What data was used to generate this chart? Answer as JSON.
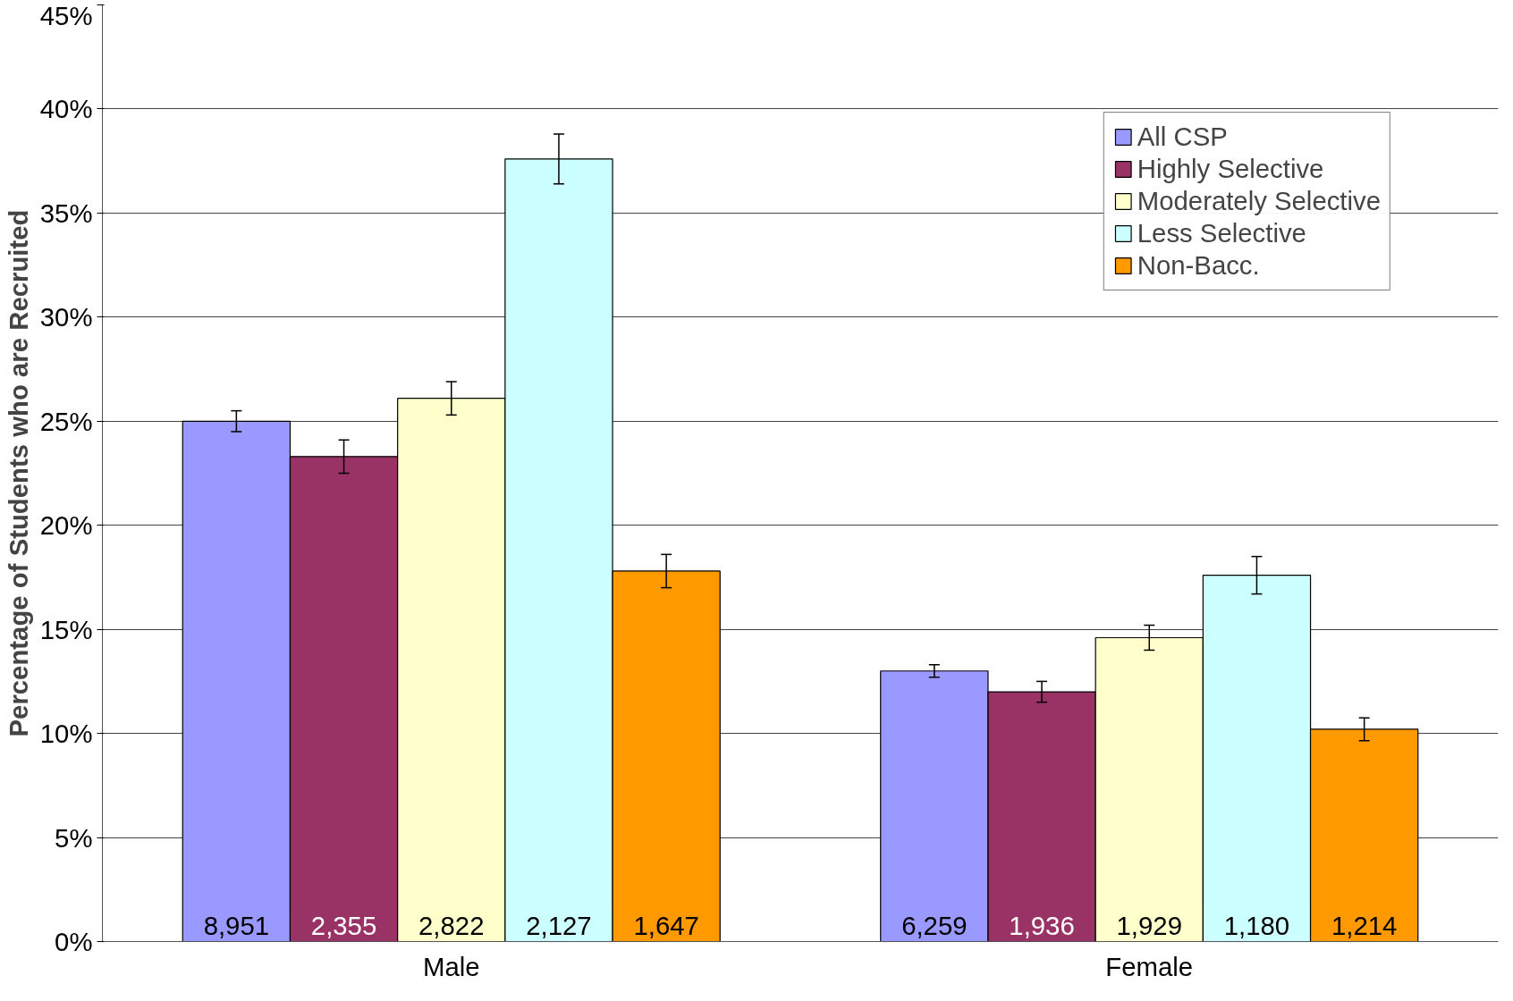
{
  "chart_data": {
    "type": "bar",
    "ylabel": "Percentage of Students who are Recruited",
    "categories": [
      "Male",
      "Female"
    ],
    "series": [
      {
        "name": "All CSP",
        "color": "#9999ff",
        "values": [
          25.0,
          13.0
        ],
        "errors": [
          0.5,
          0.3
        ]
      },
      {
        "name": "Highly Selective",
        "color": "#993366",
        "values": [
          23.3,
          12.0
        ],
        "errors": [
          0.8,
          0.5
        ]
      },
      {
        "name": "Moderately Selective",
        "color": "#ffffcc",
        "values": [
          26.1,
          14.6
        ],
        "errors": [
          0.8,
          0.6
        ]
      },
      {
        "name": "Less Selective",
        "color": "#ccffff",
        "values": [
          37.6,
          17.6
        ],
        "errors": [
          1.2,
          0.9
        ]
      },
      {
        "name": "Non-Bacc.",
        "color": "#ff9900",
        "values": [
          17.8,
          10.2
        ],
        "errors": [
          0.8,
          0.55
        ]
      }
    ],
    "annotations": [
      "8,951",
      "2,355",
      "2,822",
      "2,127",
      "1,647",
      "6,259",
      "1,936",
      "1,929",
      "1,180",
      "1,214"
    ],
    "ylim": [
      0,
      45
    ],
    "yticks": [
      {
        "value": 0,
        "label": "0%"
      },
      {
        "value": 5,
        "label": "5%"
      },
      {
        "value": 10,
        "label": "10%"
      },
      {
        "value": 15,
        "label": "15%"
      },
      {
        "value": 20,
        "label": "20%"
      },
      {
        "value": 25,
        "label": "25%"
      },
      {
        "value": 30,
        "label": "30%"
      },
      {
        "value": 35,
        "label": "35%"
      },
      {
        "value": 40,
        "label": "40%"
      },
      {
        "value": 45,
        "label": "45%"
      }
    ],
    "grid": "y",
    "legend": "top right"
  }
}
